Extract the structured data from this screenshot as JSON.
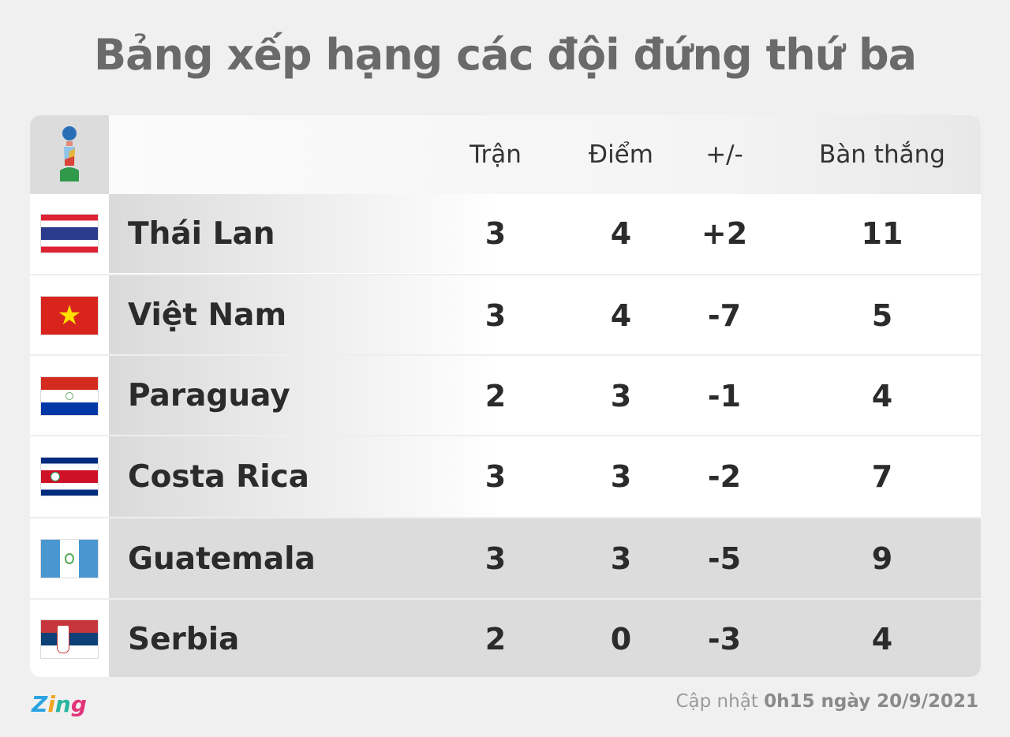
{
  "title": "Bảng xếp hạng các đội đứng thứ ba",
  "header": {
    "logo": "fifa-futsal-world-cup-trophy-icon",
    "columns": [
      "Trận",
      "Điểm",
      "+/-",
      "Bàn thắng"
    ]
  },
  "rows": [
    {
      "team": "Thái Lan",
      "flag": "thailand-flag-icon",
      "played": "3",
      "points": "4",
      "diff": "+2",
      "goals": "11"
    },
    {
      "team": "Việt Nam",
      "flag": "vietnam-flag-icon",
      "played": "3",
      "points": "4",
      "diff": "-7",
      "goals": "5"
    },
    {
      "team": "Paraguay",
      "flag": "paraguay-flag-icon",
      "played": "2",
      "points": "3",
      "diff": "-1",
      "goals": "4"
    },
    {
      "team": "Costa Rica",
      "flag": "costa-rica-flag-icon",
      "played": "3",
      "points": "3",
      "diff": "-2",
      "goals": "7"
    },
    {
      "team": "Guatemala",
      "flag": "guatemala-flag-icon",
      "played": "3",
      "points": "3",
      "diff": "-5",
      "goals": "9"
    },
    {
      "team": "Serbia",
      "flag": "serbia-flag-icon",
      "played": "2",
      "points": "0",
      "diff": "-3",
      "goals": "4"
    }
  ],
  "footer": {
    "logo": "Zing",
    "updated_label": "Cập nhật",
    "updated_time": "0h15 ngày 20/9/2021"
  }
}
